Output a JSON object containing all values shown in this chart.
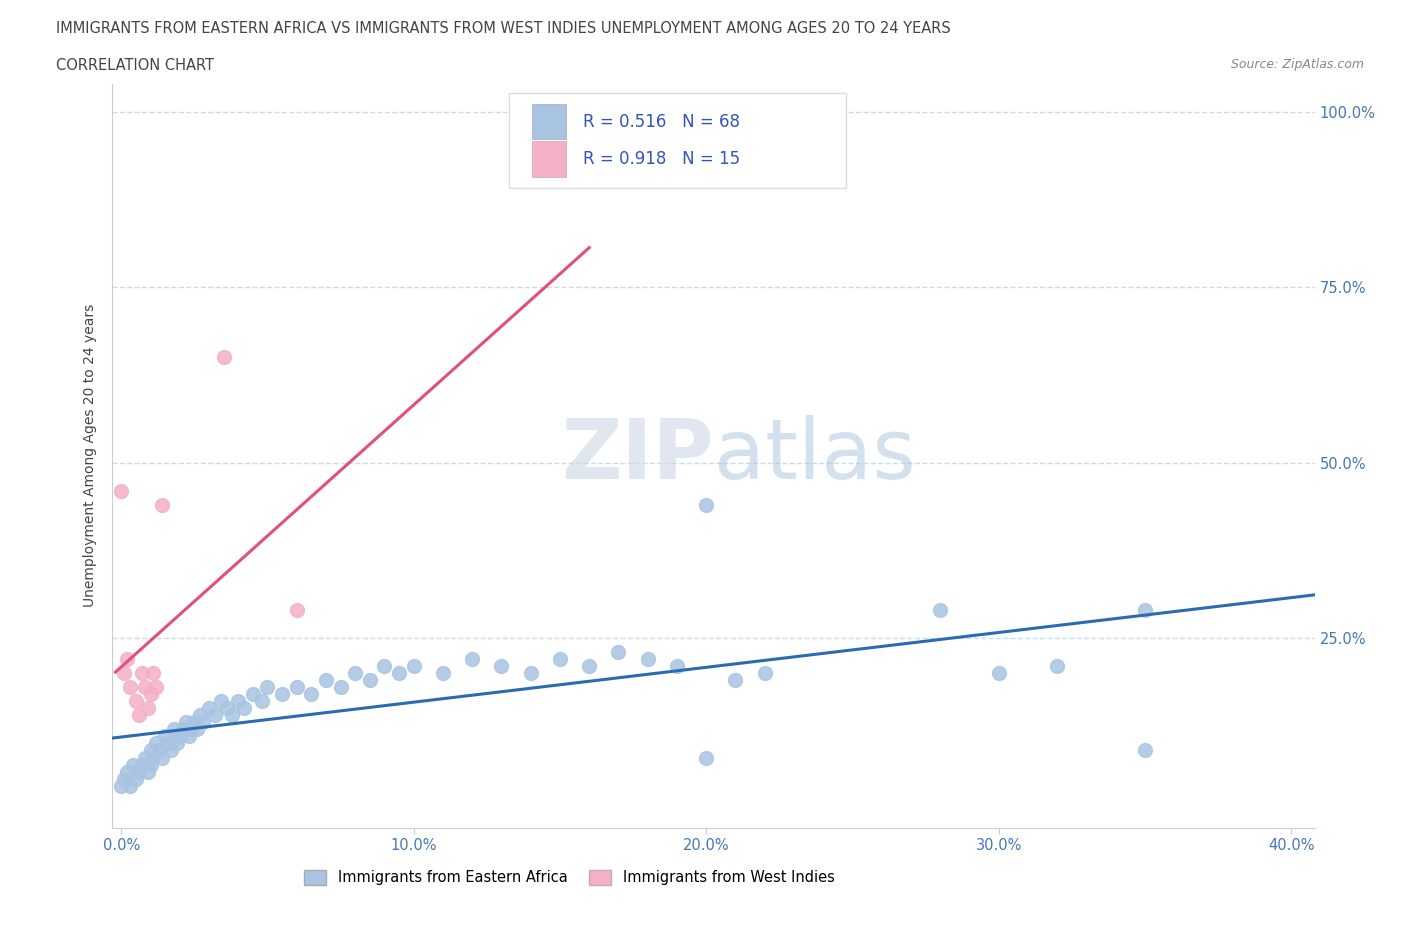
{
  "title_line1": "IMMIGRANTS FROM EASTERN AFRICA VS IMMIGRANTS FROM WEST INDIES UNEMPLOYMENT AMONG AGES 20 TO 24 YEARS",
  "title_line2": "CORRELATION CHART",
  "source_text": "Source: ZipAtlas.com",
  "ylabel": "Unemployment Among Ages 20 to 24 years",
  "r_eastern": 0.516,
  "n_eastern": 68,
  "r_westindies": 0.918,
  "n_westindies": 15,
  "color_eastern": "#a8c4e2",
  "color_eastern_line": "#2b6cb0",
  "color_westindies": "#f4b0c4",
  "color_westindies_line": "#e0507a",
  "xlim_min": -0.003,
  "xlim_max": 0.408,
  "ylim_min": -0.02,
  "ylim_max": 1.04,
  "xtick_labels": [
    "0.0%",
    "10.0%",
    "20.0%",
    "30.0%",
    "40.0%"
  ],
  "xtick_vals": [
    0.0,
    0.1,
    0.2,
    0.3,
    0.4
  ],
  "ytick_labels_right": [
    "100.0%",
    "75.0%",
    "50.0%",
    "25.0%"
  ],
  "ytick_vals_right": [
    1.0,
    0.75,
    0.5,
    0.25
  ],
  "eastern_africa_x": [
    0.0,
    0.001,
    0.002,
    0.003,
    0.004,
    0.005,
    0.006,
    0.007,
    0.008,
    0.009,
    0.01,
    0.01,
    0.011,
    0.012,
    0.013,
    0.014,
    0.015,
    0.016,
    0.017,
    0.018,
    0.019,
    0.02,
    0.021,
    0.022,
    0.023,
    0.024,
    0.025,
    0.026,
    0.027,
    0.028,
    0.03,
    0.032,
    0.034,
    0.036,
    0.038,
    0.04,
    0.042,
    0.045,
    0.048,
    0.05,
    0.055,
    0.06,
    0.065,
    0.07,
    0.075,
    0.08,
    0.085,
    0.09,
    0.095,
    0.1,
    0.11,
    0.12,
    0.13,
    0.14,
    0.15,
    0.16,
    0.17,
    0.18,
    0.19,
    0.2,
    0.21,
    0.22,
    0.2,
    0.28,
    0.3,
    0.32,
    0.35,
    0.35
  ],
  "eastern_africa_y": [
    0.04,
    0.05,
    0.06,
    0.04,
    0.07,
    0.05,
    0.06,
    0.07,
    0.08,
    0.06,
    0.09,
    0.07,
    0.08,
    0.1,
    0.09,
    0.08,
    0.11,
    0.1,
    0.09,
    0.12,
    0.1,
    0.11,
    0.12,
    0.13,
    0.11,
    0.12,
    0.13,
    0.12,
    0.14,
    0.13,
    0.15,
    0.14,
    0.16,
    0.15,
    0.14,
    0.16,
    0.15,
    0.17,
    0.16,
    0.18,
    0.17,
    0.18,
    0.17,
    0.19,
    0.18,
    0.2,
    0.19,
    0.21,
    0.2,
    0.21,
    0.2,
    0.22,
    0.21,
    0.2,
    0.22,
    0.21,
    0.23,
    0.22,
    0.21,
    0.44,
    0.19,
    0.2,
    0.08,
    0.29,
    0.2,
    0.21,
    0.09,
    0.29
  ],
  "west_indies_x": [
    0.0,
    0.001,
    0.002,
    0.003,
    0.005,
    0.006,
    0.007,
    0.008,
    0.009,
    0.01,
    0.011,
    0.012,
    0.014,
    0.035,
    0.06
  ],
  "west_indies_y": [
    0.46,
    0.2,
    0.22,
    0.18,
    0.16,
    0.14,
    0.2,
    0.18,
    0.15,
    0.17,
    0.2,
    0.18,
    0.44,
    0.65,
    0.29
  ],
  "background_color": "#ffffff",
  "grid_color": "#c8ddf0",
  "title_color": "#444444",
  "axis_color": "#4477bb",
  "stats_text_color": "#3355bb"
}
